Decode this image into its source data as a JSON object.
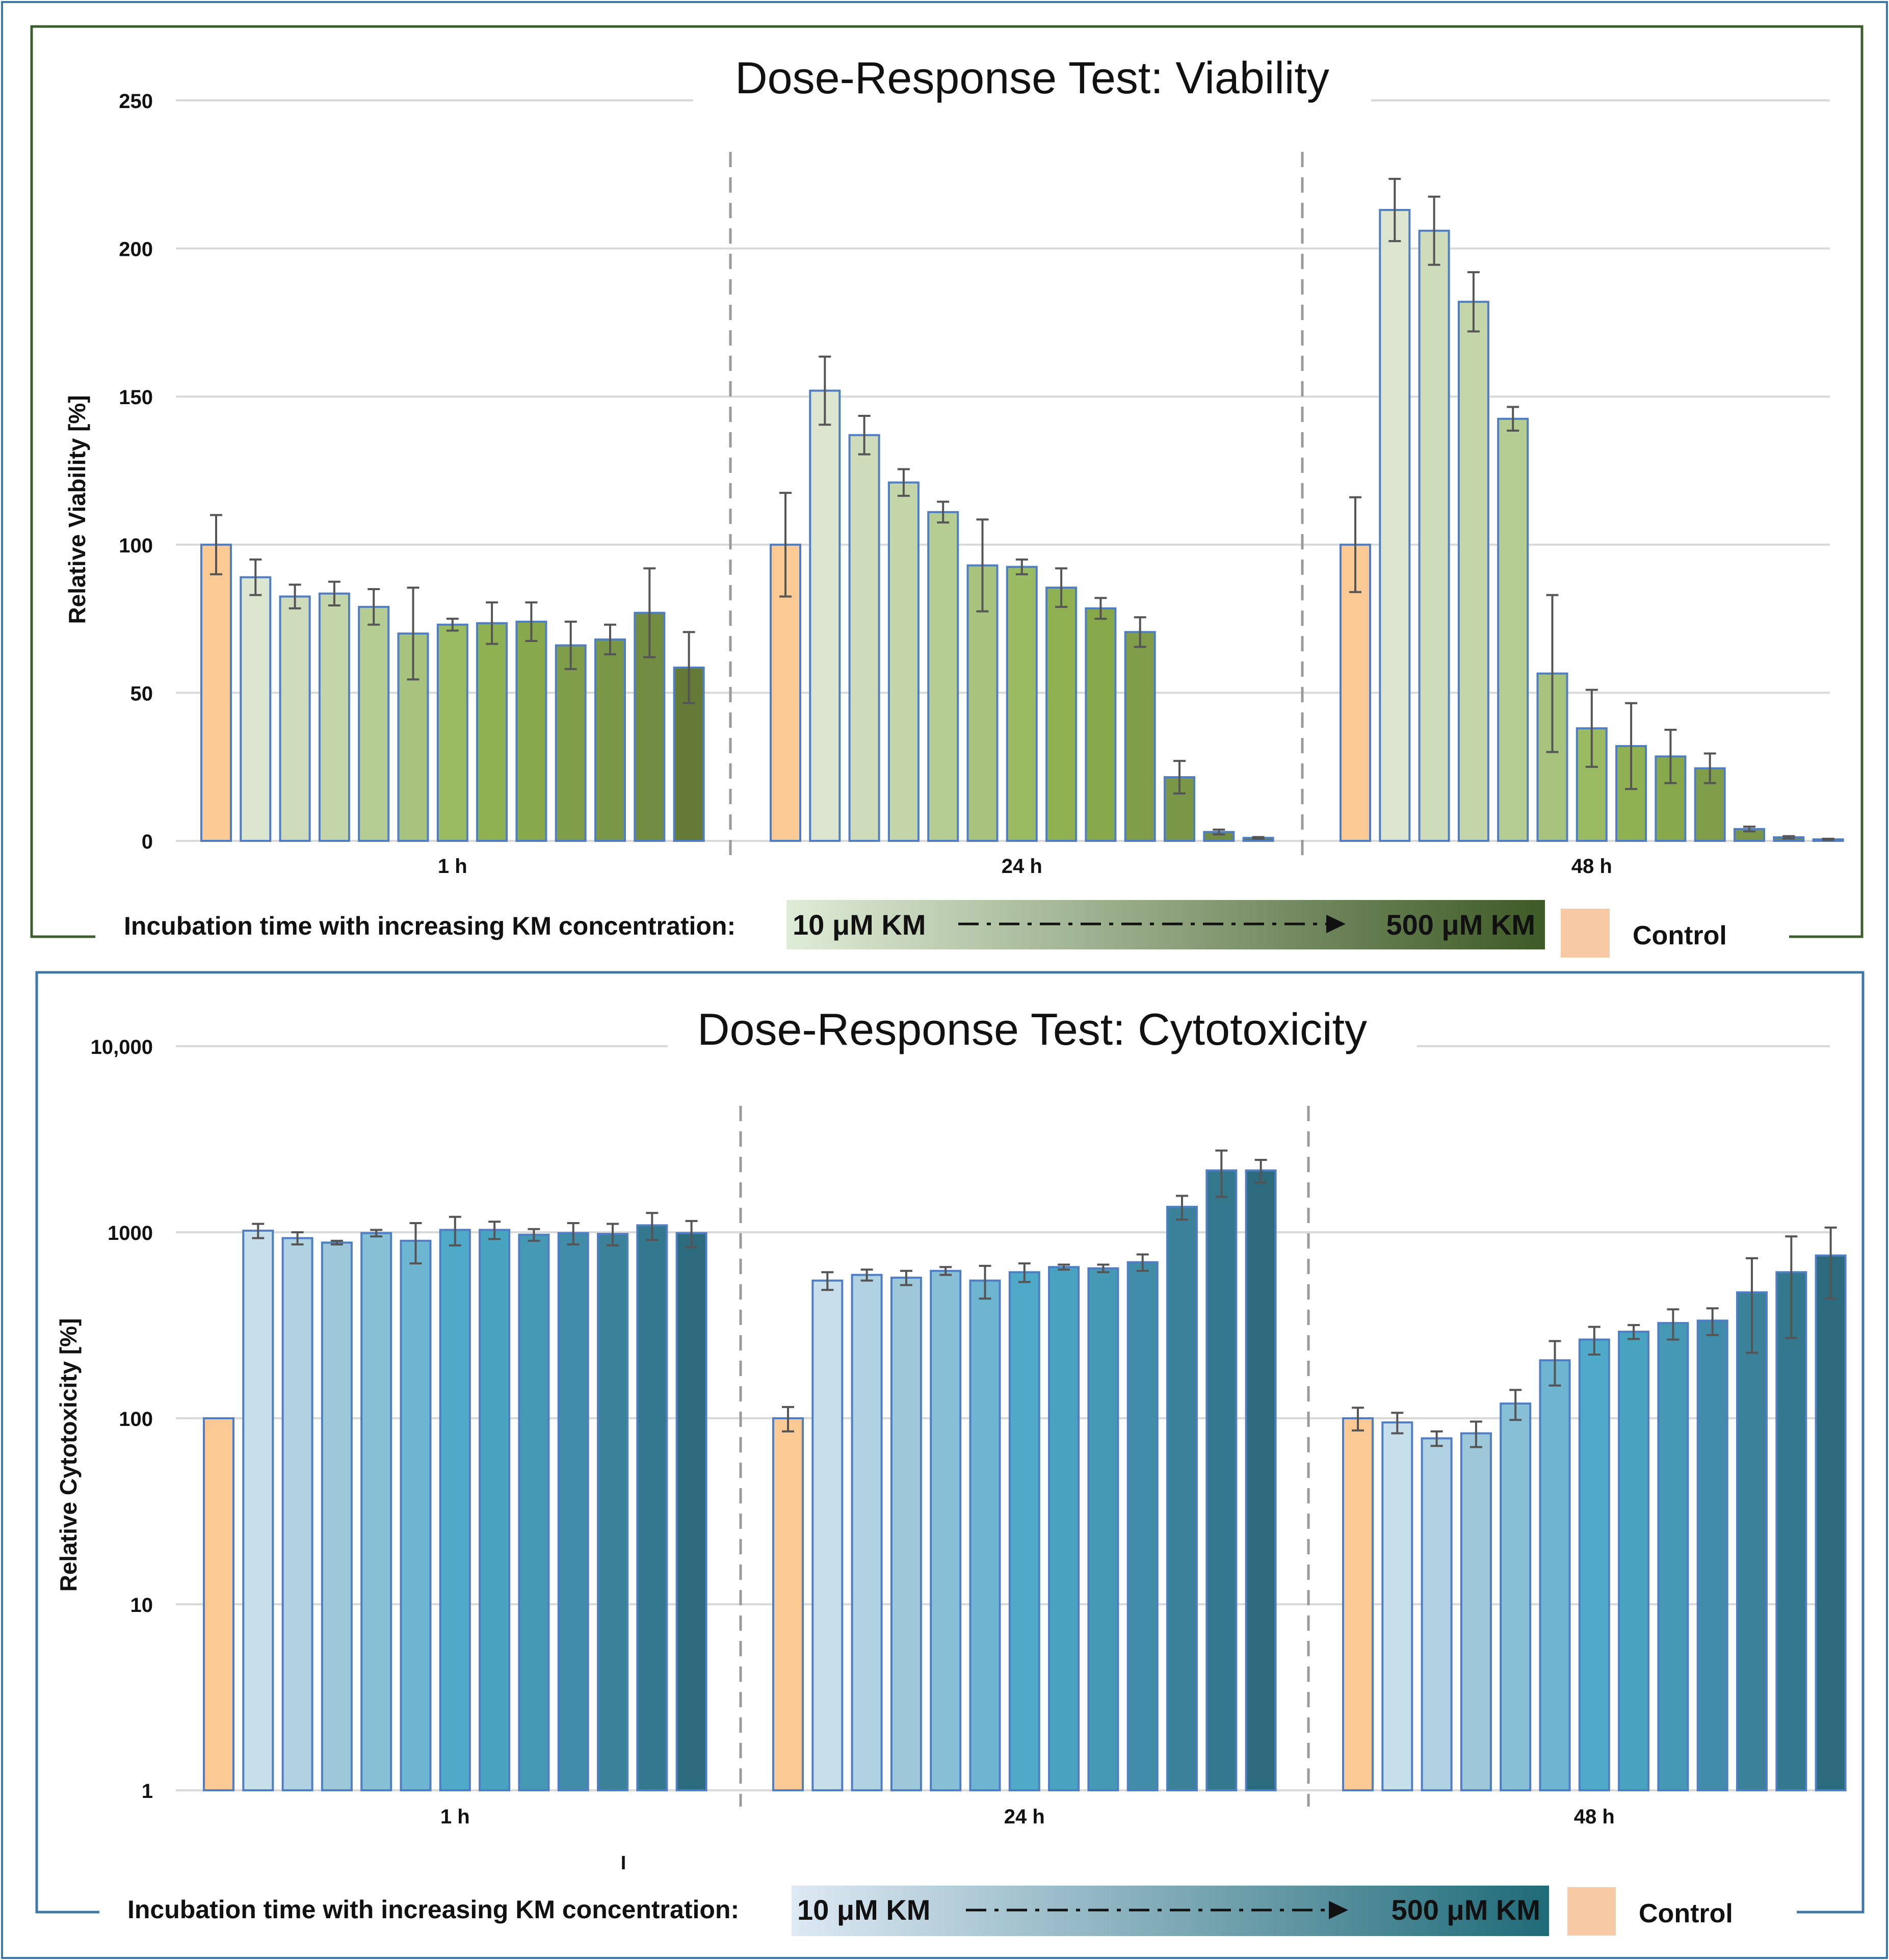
{
  "chart_data": [
    {
      "type": "bar",
      "title": "Dose-Response Test: Viability",
      "xlabel": "",
      "ylabel": "Relative Viability [%]",
      "ylim": [
        0,
        250
      ],
      "yticks": [
        "0",
        "50",
        "100",
        "150",
        "200",
        "250"
      ],
      "scale": "linear",
      "grid": true,
      "groups": [
        {
          "label": "1 h",
          "values": [
            100,
            89,
            82.5,
            83.5,
            79,
            70,
            73,
            73.5,
            74,
            66,
            68,
            77,
            58.5
          ],
          "errors": [
            10,
            6,
            4,
            4,
            6,
            15.5,
            2,
            7,
            6.5,
            8,
            5,
            15,
            12
          ]
        },
        {
          "label": "24 h",
          "values": [
            100,
            152,
            137,
            121,
            111,
            93,
            92.5,
            85.5,
            78.5,
            70.5,
            21.5,
            3,
            1
          ],
          "errors": [
            17.5,
            11.5,
            6.5,
            4.5,
            3.5,
            15.5,
            2.5,
            6.5,
            3.5,
            5,
            5.5,
            0.8,
            0.3
          ]
        },
        {
          "label": "48 h",
          "values": [
            100,
            213,
            206,
            182,
            142.5,
            56.5,
            38,
            32,
            28.5,
            24.5,
            4,
            1.2,
            0.5
          ],
          "errors": [
            16,
            10.5,
            11.5,
            10,
            4,
            26.5,
            13,
            14.5,
            9,
            5,
            0.8,
            0.4,
            0.2
          ]
        }
      ],
      "colors": [
        "#fbc993",
        "#dbe5cf",
        "#cfdcbc",
        "#c3d5a9",
        "#b5cc92",
        "#a8c37e",
        "#9bbb62",
        "#90b152",
        "#88a84c",
        "#809e49",
        "#7a9747",
        "#728c42",
        "#667a38"
      ],
      "legend": {
        "prefix": "Incubation time with increasing KM concentration:",
        "low": "10 μM KM",
        "high": "500 μM KM",
        "control": "Control",
        "gradient": [
          "#dfecd7",
          "#3e5a26"
        ]
      }
    },
    {
      "type": "bar",
      "title": "Dose-Response Test: Cytotoxicity",
      "xlabel": "",
      "ylabel": "Relative Cytotoxicity [%]",
      "ylim": [
        1,
        10000
      ],
      "yticks": [
        "1",
        "10",
        "100",
        "1000",
        "10,000"
      ],
      "scale": "log",
      "grid": true,
      "groups": [
        {
          "label": "1 h",
          "values": [
            100,
            1020,
            930,
            880,
            990,
            900,
            1030,
            1030,
            970,
            990,
            980,
            1090,
            990
          ],
          "errors": [
            0,
            90,
            70,
            20,
            40,
            220,
            180,
            110,
            70,
            130,
            130,
            180,
            160
          ]
        },
        {
          "label": "24 h",
          "values": [
            100,
            550,
            590,
            570,
            620,
            550,
            610,
            650,
            640,
            690,
            1370,
            2150,
            2150
          ],
          "errors": [
            15,
            60,
            40,
            50,
            30,
            110,
            70,
            20,
            30,
            70,
            200,
            600,
            300
          ]
        },
        {
          "label": "48 h",
          "values": [
            100,
            95,
            78,
            83,
            120,
            205,
            265,
            292,
            325,
            335,
            475,
            610,
            750
          ],
          "errors": [
            14,
            12,
            7,
            13,
            22,
            55,
            45,
            25,
            60,
            55,
            250,
            340,
            310
          ]
        }
      ],
      "colors": [
        "#fbc993",
        "#c6dfeb",
        "#b0d2e2",
        "#9dc8da",
        "#87bfd6",
        "#6db5d1",
        "#4eaac8",
        "#47a3c0",
        "#4599b5",
        "#408ca9",
        "#3a8199",
        "#33788d",
        "#2c6b7e"
      ],
      "legend": {
        "prefix": "Incubation time with increasing KM concentration:",
        "low": "10 μM KM",
        "high": "500 μM KM",
        "control": "Control",
        "gradient": [
          "#dde9f4",
          "#1f6b78"
        ]
      },
      "stray_mark": "I"
    }
  ]
}
